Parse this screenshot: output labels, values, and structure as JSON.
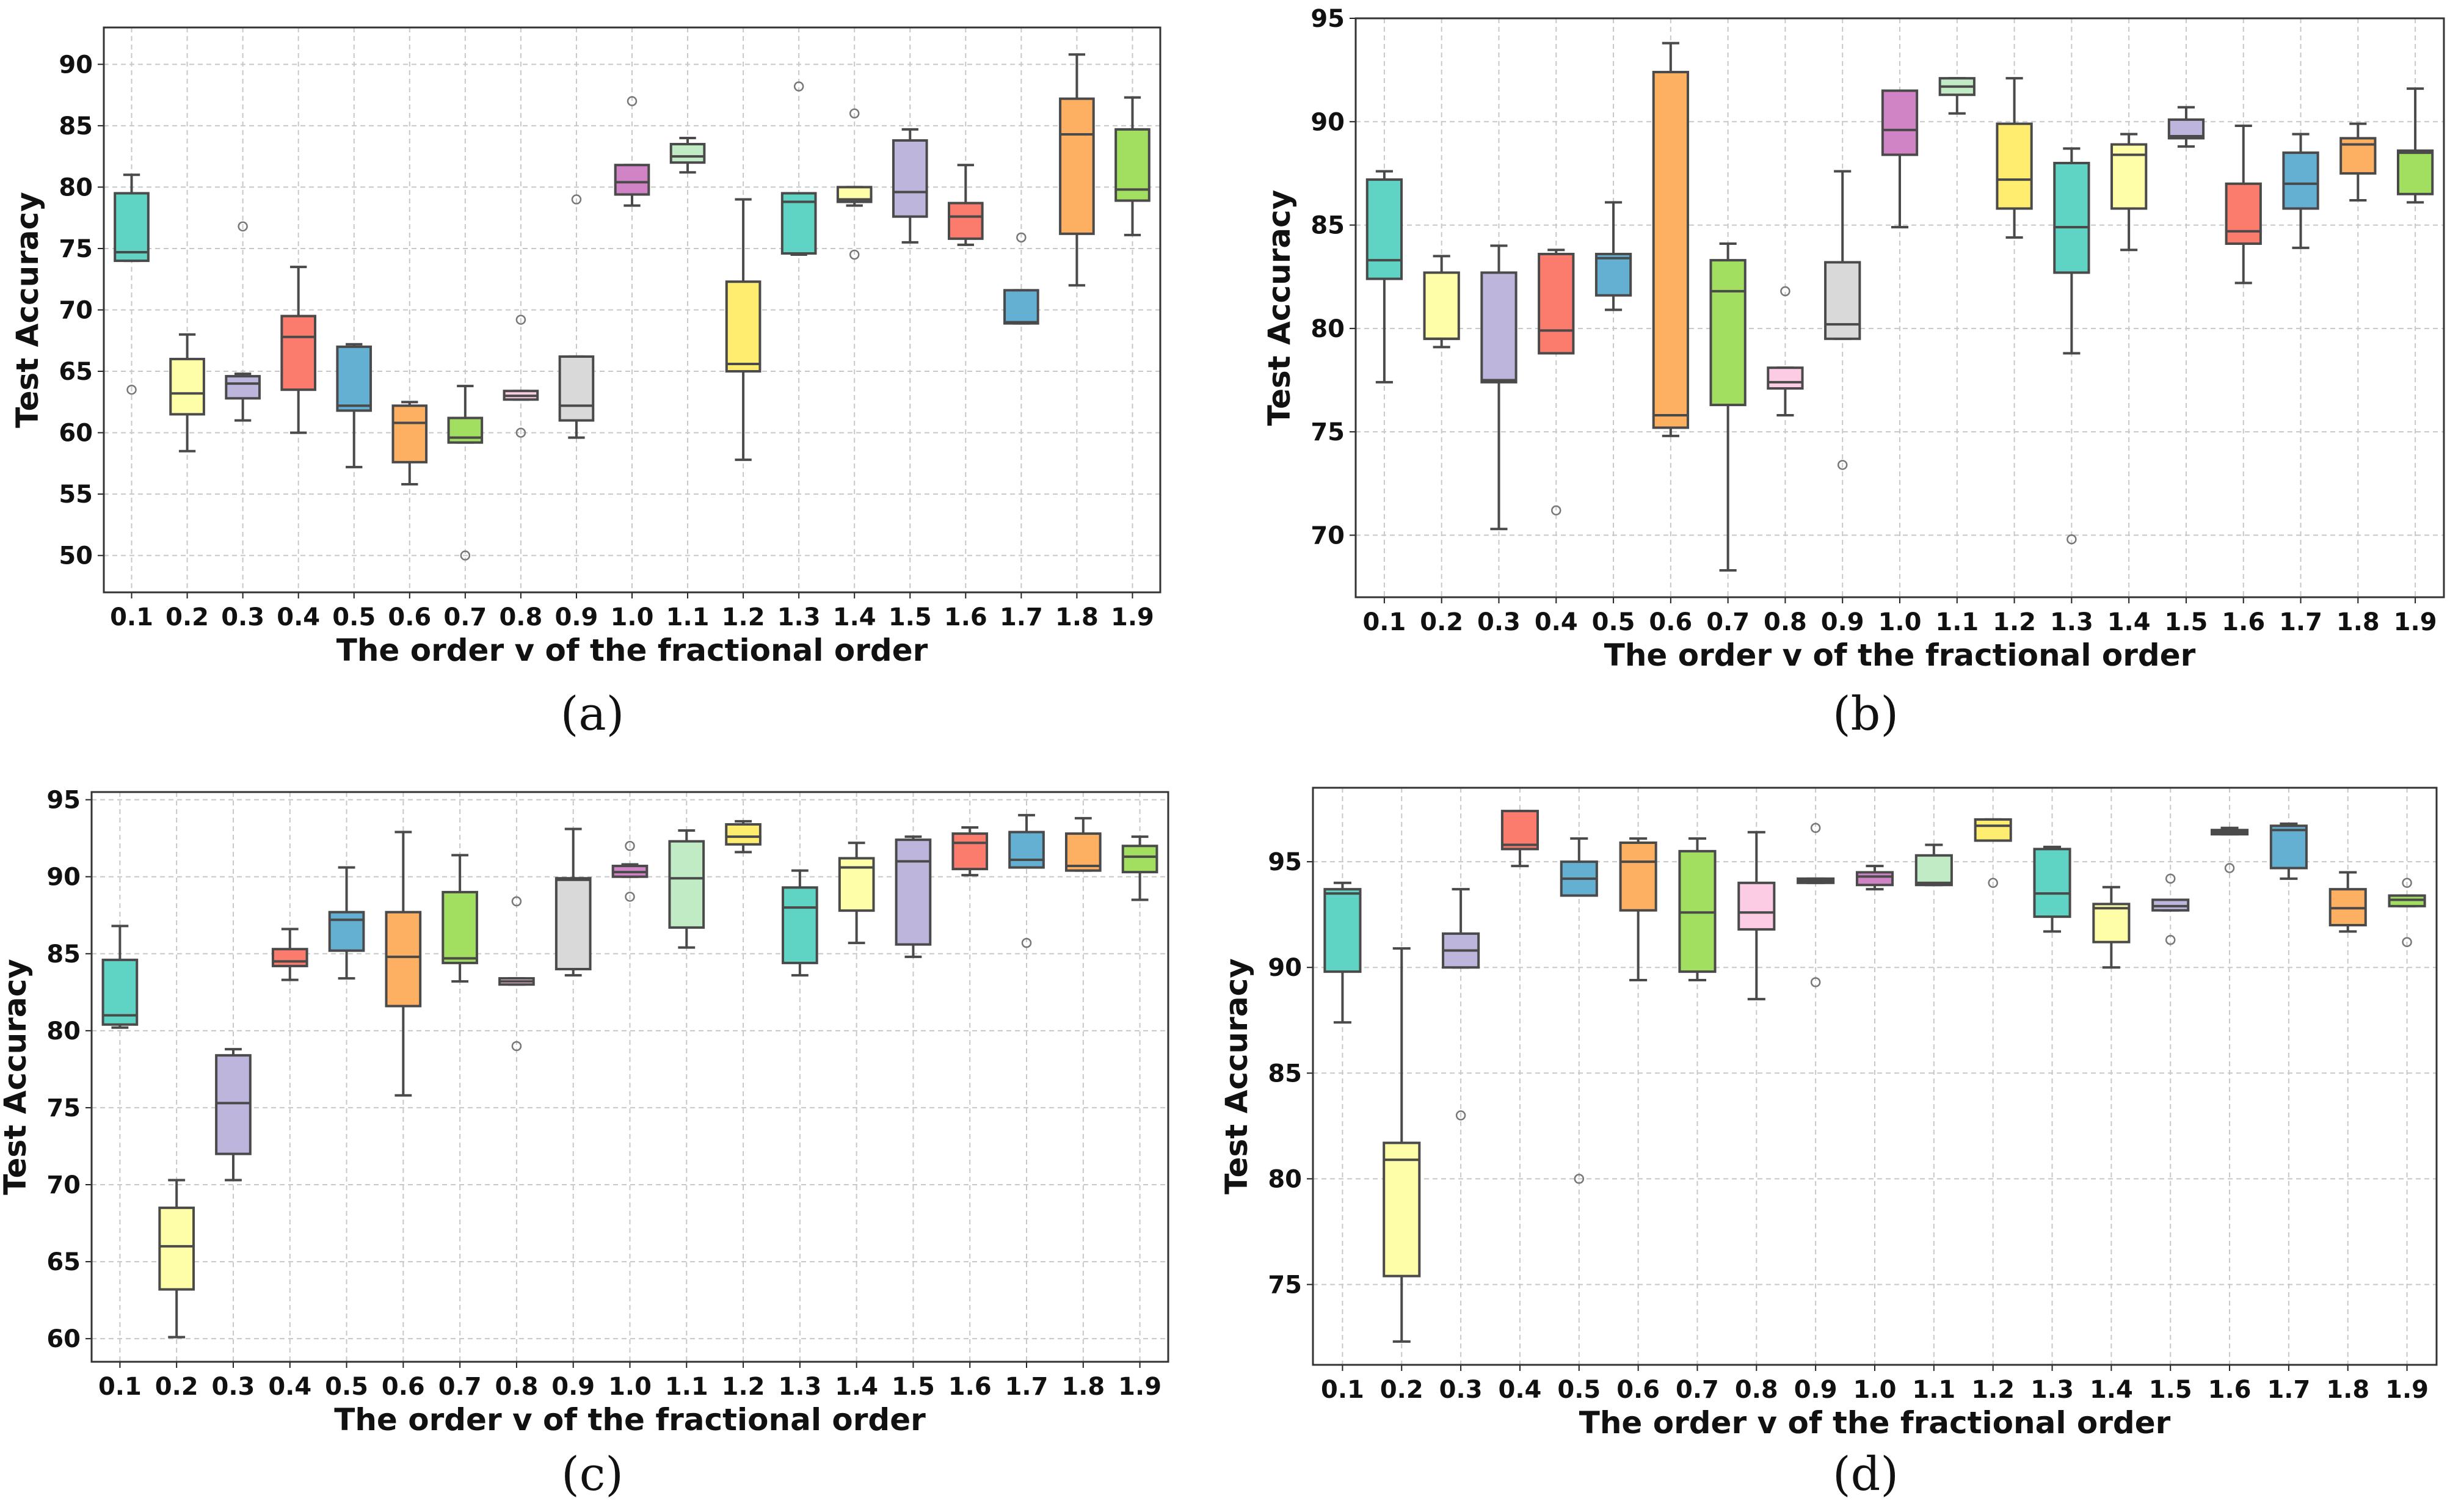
{
  "chart_data": [
    {
      "type": "box",
      "panel": "(a)",
      "xlabel": "The order v of the fractional order",
      "ylabel": "Test Accuracy",
      "ylim": [
        47,
        93
      ],
      "yticks": [
        50,
        55,
        60,
        65,
        70,
        75,
        80,
        85,
        90
      ],
      "categories": [
        "0.1",
        "0.2",
        "0.3",
        "0.4",
        "0.5",
        "0.6",
        "0.7",
        "0.8",
        "0.9",
        "1.0",
        "1.1",
        "1.2",
        "1.3",
        "1.4",
        "1.5",
        "1.6",
        "1.7",
        "1.8",
        "1.9"
      ],
      "boxes": [
        {
          "whislo": 74.0,
          "q1": 74.0,
          "med": 74.7,
          "q3": 79.5,
          "whishi": 81.0,
          "fliers": [
            63.5
          ]
        },
        {
          "whislo": 58.5,
          "q1": 61.5,
          "med": 63.2,
          "q3": 66.0,
          "whishi": 68.0,
          "fliers": []
        },
        {
          "whislo": 61.0,
          "q1": 62.8,
          "med": 64.0,
          "q3": 64.6,
          "whishi": 64.8,
          "fliers": [
            76.8
          ]
        },
        {
          "whislo": 60.0,
          "q1": 63.5,
          "med": 67.8,
          "q3": 69.5,
          "whishi": 73.5,
          "fliers": []
        },
        {
          "whislo": 57.2,
          "q1": 61.8,
          "med": 62.2,
          "q3": 67.0,
          "whishi": 67.2,
          "fliers": []
        },
        {
          "whislo": 55.8,
          "q1": 57.6,
          "med": 60.8,
          "q3": 62.2,
          "whishi": 62.5,
          "fliers": []
        },
        {
          "whislo": 59.2,
          "q1": 59.2,
          "med": 59.6,
          "q3": 61.2,
          "whishi": 63.8,
          "fliers": [
            50.0
          ]
        },
        {
          "whislo": 62.7,
          "q1": 62.7,
          "med": 63.0,
          "q3": 63.4,
          "whishi": 63.4,
          "fliers": [
            60.0,
            69.2
          ]
        },
        {
          "whislo": 59.6,
          "q1": 61.0,
          "med": 62.2,
          "q3": 66.2,
          "whishi": 66.2,
          "fliers": [
            79.0
          ]
        },
        {
          "whislo": 78.5,
          "q1": 79.4,
          "med": 80.4,
          "q3": 81.8,
          "whishi": 81.8,
          "fliers": [
            87.0
          ]
        },
        {
          "whislo": 81.2,
          "q1": 82.0,
          "med": 82.5,
          "q3": 83.5,
          "whishi": 84.0,
          "fliers": []
        },
        {
          "whislo": 57.8,
          "q1": 65.0,
          "med": 65.6,
          "q3": 72.3,
          "whishi": 79.0,
          "fliers": []
        },
        {
          "whislo": 74.5,
          "q1": 74.6,
          "med": 78.8,
          "q3": 79.5,
          "whishi": 79.5,
          "fliers": [
            88.2
          ]
        },
        {
          "whislo": 78.5,
          "q1": 78.8,
          "med": 79.0,
          "q3": 80.0,
          "whishi": 80.0,
          "fliers": [
            74.5,
            86.0
          ]
        },
        {
          "whislo": 75.5,
          "q1": 77.6,
          "med": 79.6,
          "q3": 83.8,
          "whishi": 84.7,
          "fliers": []
        },
        {
          "whislo": 75.3,
          "q1": 75.8,
          "med": 77.6,
          "q3": 78.7,
          "whishi": 81.8,
          "fliers": []
        },
        {
          "whislo": 68.9,
          "q1": 68.9,
          "med": 69.0,
          "q3": 71.6,
          "whishi": 71.6,
          "fliers": [
            75.9
          ]
        },
        {
          "whislo": 72.0,
          "q1": 76.2,
          "med": 84.3,
          "q3": 87.2,
          "whishi": 90.8,
          "fliers": []
        },
        {
          "whislo": 76.1,
          "q1": 78.9,
          "med": 79.8,
          "q3": 84.7,
          "whishi": 87.3,
          "fliers": []
        }
      ]
    },
    {
      "type": "box",
      "panel": "(b)",
      "xlabel": "The order v of the fractional order",
      "ylabel": "Test Accuracy",
      "ylim": [
        67,
        95
      ],
      "yticks": [
        70,
        75,
        80,
        85,
        90,
        95
      ],
      "categories": [
        "0.1",
        "0.2",
        "0.3",
        "0.4",
        "0.5",
        "0.6",
        "0.7",
        "0.8",
        "0.9",
        "1.0",
        "1.1",
        "1.2",
        "1.3",
        "1.4",
        "1.5",
        "1.6",
        "1.7",
        "1.8",
        "1.9"
      ],
      "boxes": [
        {
          "whislo": 77.4,
          "q1": 82.4,
          "med": 83.3,
          "q3": 87.2,
          "whishi": 87.6,
          "fliers": []
        },
        {
          "whislo": 79.1,
          "q1": 79.5,
          "med": 79.5,
          "q3": 82.7,
          "whishi": 83.5,
          "fliers": []
        },
        {
          "whislo": 70.3,
          "q1": 77.4,
          "med": 77.5,
          "q3": 82.7,
          "whishi": 84.0,
          "fliers": []
        },
        {
          "whislo": 78.8,
          "q1": 78.8,
          "med": 79.9,
          "q3": 83.6,
          "whishi": 83.8,
          "fliers": [
            71.2
          ]
        },
        {
          "whislo": 80.9,
          "q1": 81.6,
          "med": 83.4,
          "q3": 83.6,
          "whishi": 86.1,
          "fliers": []
        },
        {
          "whislo": 74.8,
          "q1": 75.2,
          "med": 75.8,
          "q3": 92.4,
          "whishi": 93.8,
          "fliers": []
        },
        {
          "whislo": 68.3,
          "q1": 76.3,
          "med": 81.8,
          "q3": 83.3,
          "whishi": 84.1,
          "fliers": []
        },
        {
          "whislo": 75.8,
          "q1": 77.1,
          "med": 77.4,
          "q3": 78.1,
          "whishi": 78.1,
          "fliers": [
            81.8
          ]
        },
        {
          "whislo": 79.5,
          "q1": 79.5,
          "med": 80.2,
          "q3": 83.2,
          "whishi": 87.6,
          "fliers": [
            73.4
          ]
        },
        {
          "whislo": 84.9,
          "q1": 88.4,
          "med": 89.6,
          "q3": 91.5,
          "whishi": 91.5,
          "fliers": []
        },
        {
          "whislo": 90.4,
          "q1": 91.3,
          "med": 91.7,
          "q3": 92.1,
          "whishi": 92.1,
          "fliers": []
        },
        {
          "whislo": 84.4,
          "q1": 85.8,
          "med": 87.2,
          "q3": 89.9,
          "whishi": 92.1,
          "fliers": []
        },
        {
          "whislo": 78.8,
          "q1": 82.7,
          "med": 84.9,
          "q3": 88.0,
          "whishi": 88.7,
          "fliers": [
            69.8
          ]
        },
        {
          "whislo": 83.8,
          "q1": 85.8,
          "med": 88.4,
          "q3": 88.9,
          "whishi": 89.4,
          "fliers": []
        },
        {
          "whislo": 88.8,
          "q1": 89.2,
          "med": 89.3,
          "q3": 90.1,
          "whishi": 90.7,
          "fliers": []
        },
        {
          "whislo": 82.2,
          "q1": 84.1,
          "med": 84.7,
          "q3": 87.0,
          "whishi": 89.8,
          "fliers": []
        },
        {
          "whislo": 83.9,
          "q1": 85.8,
          "med": 87.0,
          "q3": 88.5,
          "whishi": 89.4,
          "fliers": []
        },
        {
          "whislo": 86.2,
          "q1": 87.5,
          "med": 88.9,
          "q3": 89.2,
          "whishi": 89.9,
          "fliers": []
        },
        {
          "whislo": 86.1,
          "q1": 86.5,
          "med": 88.5,
          "q3": 88.6,
          "whishi": 91.6,
          "fliers": []
        }
      ]
    },
    {
      "type": "box",
      "panel": "(c)",
      "xlabel": "The order v of the fractional order",
      "ylabel": "Test Accuracy",
      "ylim": [
        58.5,
        95.5
      ],
      "yticks": [
        60,
        65,
        70,
        75,
        80,
        85,
        90,
        95
      ],
      "categories": [
        "0.1",
        "0.2",
        "0.3",
        "0.4",
        "0.5",
        "0.6",
        "0.7",
        "0.8",
        "0.9",
        "1.0",
        "1.1",
        "1.2",
        "1.3",
        "1.4",
        "1.5",
        "1.6",
        "1.7",
        "1.8",
        "1.9"
      ],
      "boxes": [
        {
          "whislo": 80.2,
          "q1": 80.4,
          "med": 81.0,
          "q3": 84.6,
          "whishi": 86.8,
          "fliers": []
        },
        {
          "whislo": 60.1,
          "q1": 63.2,
          "med": 66.0,
          "q3": 68.5,
          "whishi": 70.3,
          "fliers": []
        },
        {
          "whislo": 70.3,
          "q1": 72.0,
          "med": 75.3,
          "q3": 78.4,
          "whishi": 78.8,
          "fliers": []
        },
        {
          "whislo": 83.3,
          "q1": 84.2,
          "med": 84.5,
          "q3": 85.3,
          "whishi": 86.6,
          "fliers": []
        },
        {
          "whislo": 83.4,
          "q1": 85.2,
          "med": 87.2,
          "q3": 87.7,
          "whishi": 90.6,
          "fliers": []
        },
        {
          "whislo": 75.8,
          "q1": 81.6,
          "med": 84.8,
          "q3": 87.7,
          "whishi": 92.9,
          "fliers": []
        },
        {
          "whislo": 83.2,
          "q1": 84.4,
          "med": 84.7,
          "q3": 89.0,
          "whishi": 91.4,
          "fliers": []
        },
        {
          "whislo": 83.0,
          "q1": 83.0,
          "med": 83.2,
          "q3": 83.4,
          "whishi": 83.4,
          "fliers": [
            79.0,
            88.4
          ]
        },
        {
          "whislo": 83.6,
          "q1": 84.0,
          "med": 89.8,
          "q3": 89.9,
          "whishi": 93.1,
          "fliers": []
        },
        {
          "whislo": 90.0,
          "q1": 90.0,
          "med": 90.3,
          "q3": 90.7,
          "whishi": 90.8,
          "fliers": [
            88.7,
            92.0
          ]
        },
        {
          "whislo": 85.4,
          "q1": 86.7,
          "med": 89.9,
          "q3": 92.3,
          "whishi": 93.0,
          "fliers": []
        },
        {
          "whislo": 91.6,
          "q1": 92.1,
          "med": 92.6,
          "q3": 93.4,
          "whishi": 93.6,
          "fliers": []
        },
        {
          "whislo": 83.6,
          "q1": 84.4,
          "med": 88.0,
          "q3": 89.3,
          "whishi": 90.4,
          "fliers": []
        },
        {
          "whislo": 85.7,
          "q1": 87.8,
          "med": 90.6,
          "q3": 91.2,
          "whishi": 92.2,
          "fliers": []
        },
        {
          "whislo": 84.8,
          "q1": 85.6,
          "med": 91.0,
          "q3": 92.4,
          "whishi": 92.6,
          "fliers": []
        },
        {
          "whislo": 90.1,
          "q1": 90.5,
          "med": 92.2,
          "q3": 92.8,
          "whishi": 93.2,
          "fliers": []
        },
        {
          "whislo": 90.6,
          "q1": 90.6,
          "med": 91.1,
          "q3": 92.9,
          "whishi": 94.0,
          "fliers": [
            85.7
          ]
        },
        {
          "whislo": 90.4,
          "q1": 90.4,
          "med": 90.7,
          "q3": 92.8,
          "whishi": 93.8,
          "fliers": []
        },
        {
          "whislo": 88.5,
          "q1": 90.3,
          "med": 91.3,
          "q3": 92.0,
          "whishi": 92.6,
          "fliers": []
        }
      ]
    },
    {
      "type": "box",
      "panel": "(d)",
      "xlabel": "The order v of the fractional order",
      "ylabel": "Test Accuracy",
      "ylim": [
        71.2,
        98.5
      ],
      "yticks": [
        75,
        80,
        85,
        90,
        95
      ],
      "categories": [
        "0.1",
        "0.2",
        "0.3",
        "0.4",
        "0.5",
        "0.6",
        "0.7",
        "0.8",
        "0.9",
        "1.0",
        "1.1",
        "1.2",
        "1.3",
        "1.4",
        "1.5",
        "1.6",
        "1.7",
        "1.8",
        "1.9"
      ],
      "boxes": [
        {
          "whislo": 87.4,
          "q1": 89.8,
          "med": 93.5,
          "q3": 93.7,
          "whishi": 94.0,
          "fliers": []
        },
        {
          "whislo": 72.3,
          "q1": 75.4,
          "med": 80.9,
          "q3": 81.7,
          "whishi": 90.9,
          "fliers": []
        },
        {
          "whislo": 90.0,
          "q1": 90.0,
          "med": 90.8,
          "q3": 91.6,
          "whishi": 93.7,
          "fliers": [
            83.0
          ]
        },
        {
          "whislo": 94.8,
          "q1": 95.6,
          "med": 95.8,
          "q3": 97.4,
          "whishi": 97.4,
          "fliers": []
        },
        {
          "whislo": 93.4,
          "q1": 93.4,
          "med": 94.2,
          "q3": 95.0,
          "whishi": 96.1,
          "fliers": [
            80.0
          ]
        },
        {
          "whislo": 89.4,
          "q1": 92.7,
          "med": 95.0,
          "q3": 95.9,
          "whishi": 96.1,
          "fliers": []
        },
        {
          "whislo": 89.4,
          "q1": 89.8,
          "med": 92.6,
          "q3": 95.5,
          "whishi": 96.1,
          "fliers": []
        },
        {
          "whislo": 88.5,
          "q1": 91.8,
          "med": 92.6,
          "q3": 94.0,
          "whishi": 96.4,
          "fliers": []
        },
        {
          "whislo": 94.0,
          "q1": 94.0,
          "med": 94.1,
          "q3": 94.2,
          "whishi": 94.2,
          "fliers": [
            89.3,
            96.6
          ]
        },
        {
          "whislo": 93.7,
          "q1": 93.9,
          "med": 94.3,
          "q3": 94.5,
          "whishi": 94.8,
          "fliers": []
        },
        {
          "whislo": 93.9,
          "q1": 93.9,
          "med": 94.0,
          "q3": 95.3,
          "whishi": 95.8,
          "fliers": []
        },
        {
          "whislo": 96.0,
          "q1": 96.0,
          "med": 96.7,
          "q3": 97.0,
          "whishi": 97.0,
          "fliers": [
            94.0
          ]
        },
        {
          "whislo": 91.7,
          "q1": 92.4,
          "med": 93.5,
          "q3": 95.6,
          "whishi": 95.7,
          "fliers": []
        },
        {
          "whislo": 90.0,
          "q1": 91.2,
          "med": 92.8,
          "q3": 93.0,
          "whishi": 93.8,
          "fliers": []
        },
        {
          "whislo": 92.7,
          "q1": 92.7,
          "med": 92.9,
          "q3": 93.2,
          "whishi": 93.2,
          "fliers": [
            91.3,
            94.2
          ]
        },
        {
          "whislo": 96.3,
          "q1": 96.3,
          "med": 96.4,
          "q3": 96.5,
          "whishi": 96.6,
          "fliers": [
            94.7
          ]
        },
        {
          "whislo": 94.2,
          "q1": 94.7,
          "med": 96.5,
          "q3": 96.7,
          "whishi": 96.8,
          "fliers": []
        },
        {
          "whislo": 91.7,
          "q1": 92.0,
          "med": 92.8,
          "q3": 93.7,
          "whishi": 94.5,
          "fliers": []
        },
        {
          "whislo": 92.9,
          "q1": 92.9,
          "med": 93.2,
          "q3": 93.4,
          "whishi": 93.4,
          "fliers": [
            91.2,
            94.0
          ]
        }
      ]
    }
  ],
  "colors": {
    "box_fills": [
      "#5fd4c4",
      "#fffea8",
      "#bdb5db",
      "#fb7b6c",
      "#64b0d3",
      "#fdb062",
      "#a2df60",
      "#fccbe4",
      "#d9d9d9",
      "#d083c5",
      "#c1ebc4",
      "#feed6f",
      "#5fd4c4",
      "#fffea8",
      "#bdb5db",
      "#fb7b6c",
      "#64b0d3",
      "#fdb062",
      "#a2df60"
    ],
    "line": "#4a4a4a",
    "grid": "#c8c8c8"
  }
}
